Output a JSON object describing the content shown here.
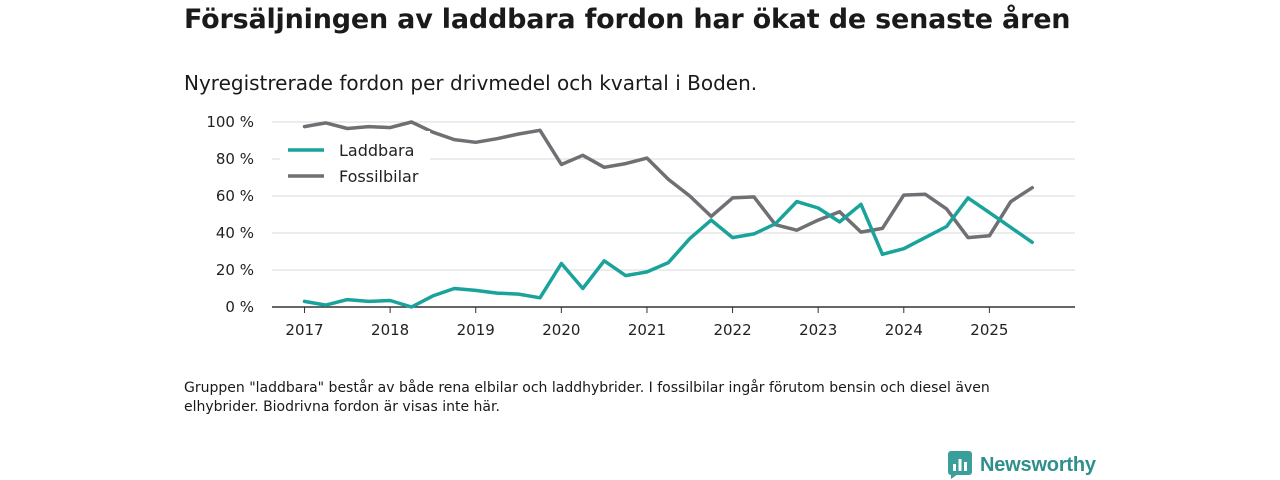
{
  "header": {
    "title": "Försäljningen av laddbara fordon har ökat de senaste åren",
    "subtitle": "Nyregistrerade fordon per drivmedel och kvartal i Boden."
  },
  "note": "Gruppen \"laddbara\" består av både rena elbilar och laddhybrider. I fossilbilar ingår förutom bensin och diesel även elhybrider. Biodrivna fordon är visas inte här.",
  "brand": {
    "name": "Newsworthy",
    "icon": "newsworthy-logo-icon",
    "color": "#2f8f8d"
  },
  "chart_data": {
    "type": "line",
    "title": "Nyregistrerade fordon per drivmedel och kvartal i Boden.",
    "xlabel": "",
    "ylabel": "",
    "x_tick_labels": [
      "2017",
      "2018",
      "2019",
      "2020",
      "2021",
      "2022",
      "2023",
      "2024",
      "2025"
    ],
    "x_tick_values": [
      2017,
      2018,
      2019,
      2020,
      2021,
      2022,
      2023,
      2024,
      2025
    ],
    "xlim": [
      2016.62,
      2026.0
    ],
    "ylim": [
      0,
      100
    ],
    "y_ticks": [
      0,
      20,
      40,
      60,
      80,
      100
    ],
    "y_tick_labels": [
      "0 %",
      "20 %",
      "40 %",
      "60 %",
      "80 %",
      "100 %"
    ],
    "grid": true,
    "legend_position": "top-left",
    "x": [
      2017.0,
      2017.25,
      2017.5,
      2017.75,
      2018.0,
      2018.25,
      2018.5,
      2018.75,
      2019.0,
      2019.25,
      2019.5,
      2019.75,
      2020.0,
      2020.25,
      2020.5,
      2020.75,
      2021.0,
      2021.25,
      2021.5,
      2021.75,
      2022.0,
      2022.25,
      2022.5,
      2022.75,
      2023.0,
      2023.25,
      2023.5,
      2023.75,
      2024.0,
      2024.25,
      2024.5,
      2024.75,
      2025.0,
      2025.25,
      2025.5
    ],
    "series": [
      {
        "name": "Laddbara",
        "color": "#1aa39a",
        "values": [
          3,
          1,
          4,
          3,
          3.5,
          0,
          6,
          10,
          9,
          7.5,
          7,
          5,
          23.5,
          10,
          25,
          17,
          19,
          24,
          37,
          47,
          37.5,
          39.5,
          45,
          57,
          53.5,
          46,
          55.5,
          28.5,
          31.5,
          37.5,
          43.5,
          59,
          51,
          43,
          35
        ]
      },
      {
        "name": "Fossilbilar",
        "color": "#6f6f74",
        "values": [
          97.5,
          99.5,
          96.5,
          97.5,
          97,
          100,
          94.5,
          90.5,
          89,
          91,
          93.5,
          95.5,
          77,
          82,
          75.5,
          77.5,
          80.5,
          69,
          60,
          49,
          59,
          59.5,
          44.5,
          41.5,
          47,
          51.5,
          40.5,
          42.5,
          60.5,
          61,
          53,
          37.5,
          38.5,
          57,
          64.5
        ]
      }
    ]
  }
}
